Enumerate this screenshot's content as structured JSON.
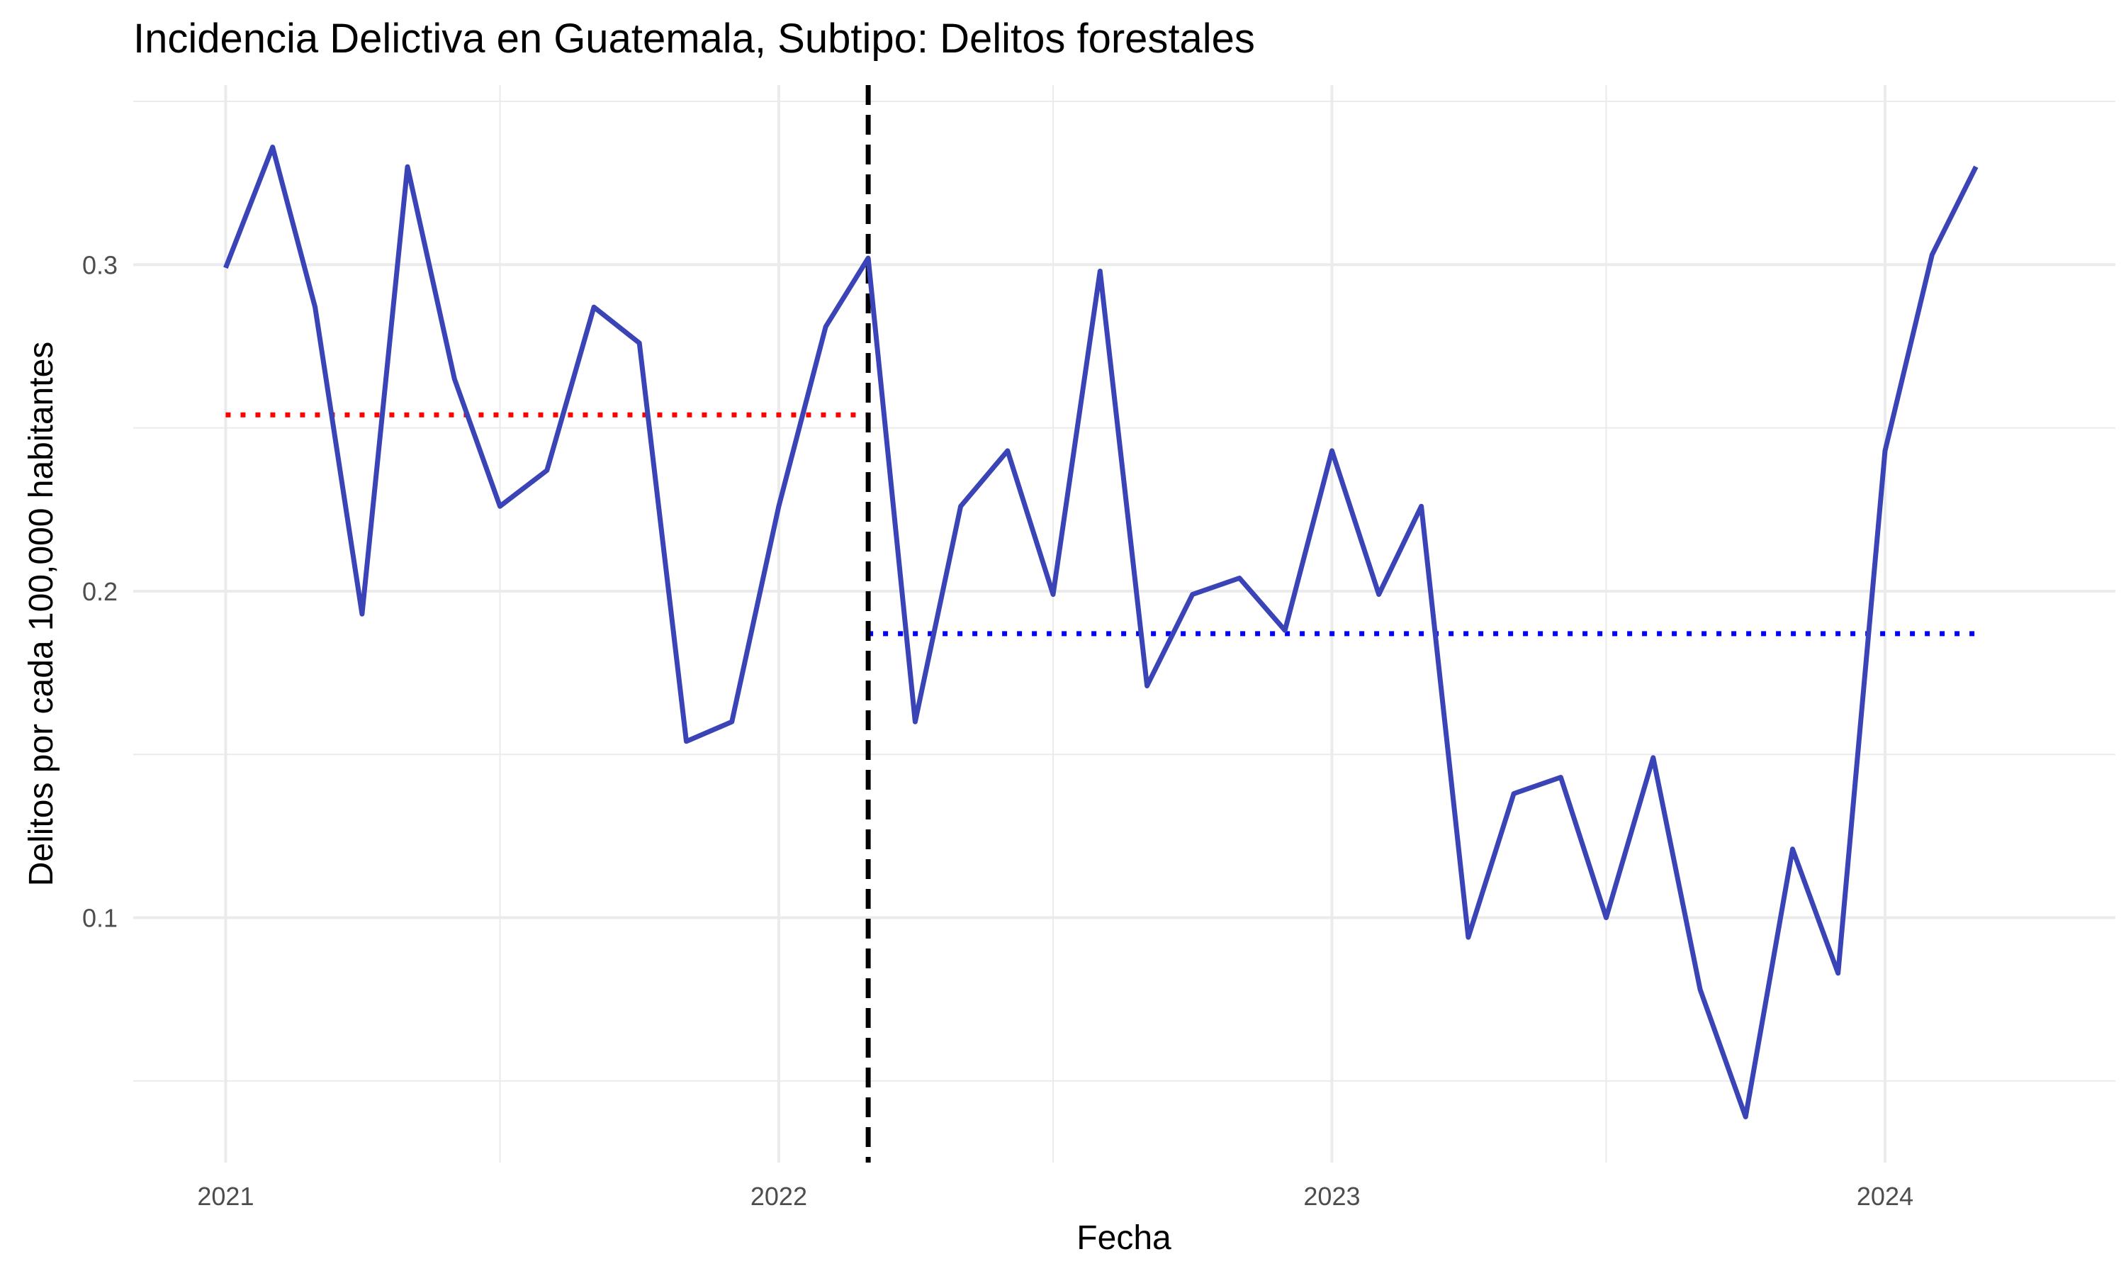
{
  "chart_data": {
    "type": "line",
    "title": "Incidencia Delictiva en Guatemala, Subtipo: Delitos forestales",
    "xlabel": "Fecha",
    "ylabel": "Delitos por cada 100,000 habitantes",
    "x_ticks": [
      "2021",
      "2022",
      "2023",
      "2024"
    ],
    "y_ticks": [
      "0.1",
      "0.2",
      "0.3"
    ],
    "xlim": [
      "2020-11-01",
      "2024-06-01"
    ],
    "ylim": [
      0.025,
      0.355
    ],
    "grid": true,
    "legend": "none",
    "series": [
      {
        "color": "#3a44b6",
        "x": [
          "2021-01-01",
          "2021-02-01",
          "2021-03-01",
          "2021-04-01",
          "2021-05-01",
          "2021-06-01",
          "2021-07-01",
          "2021-08-01",
          "2021-09-01",
          "2021-10-01",
          "2021-11-01",
          "2021-12-01",
          "2022-01-01",
          "2022-02-01",
          "2022-03-01",
          "2022-04-01",
          "2022-05-01",
          "2022-06-01",
          "2022-07-01",
          "2022-08-01",
          "2022-09-01",
          "2022-10-01",
          "2022-11-01",
          "2022-12-01",
          "2023-01-01",
          "2023-02-01",
          "2023-03-01",
          "2023-04-01",
          "2023-05-01",
          "2023-06-01",
          "2023-07-01",
          "2023-08-01",
          "2023-09-01",
          "2023-10-01",
          "2023-11-01",
          "2023-12-01",
          "2024-01-01",
          "2024-02-01",
          "2024-03-01"
        ],
        "values": [
          0.299,
          0.336,
          0.287,
          0.193,
          0.33,
          0.265,
          0.226,
          0.237,
          0.287,
          0.276,
          0.154,
          0.16,
          0.226,
          0.281,
          0.302,
          0.16,
          0.226,
          0.243,
          0.199,
          0.298,
          0.171,
          0.199,
          0.204,
          0.188,
          0.243,
          0.199,
          0.226,
          0.094,
          0.138,
          0.143,
          0.1,
          0.149,
          0.078,
          0.039,
          0.121,
          0.083,
          0.243,
          0.303,
          0.33
        ]
      }
    ],
    "reference_lines": [
      {
        "orientation": "horizontal",
        "value": 0.254,
        "from": "2021-01-01",
        "to": "2022-03-01",
        "color": "#ff0000",
        "style": "dotted"
      },
      {
        "orientation": "horizontal",
        "value": 0.187,
        "from": "2022-03-01",
        "to": "2024-03-01",
        "color": "#0000ff",
        "style": "dotted"
      },
      {
        "orientation": "vertical",
        "value": "2022-03-01",
        "color": "#000000",
        "style": "dashed"
      }
    ]
  }
}
